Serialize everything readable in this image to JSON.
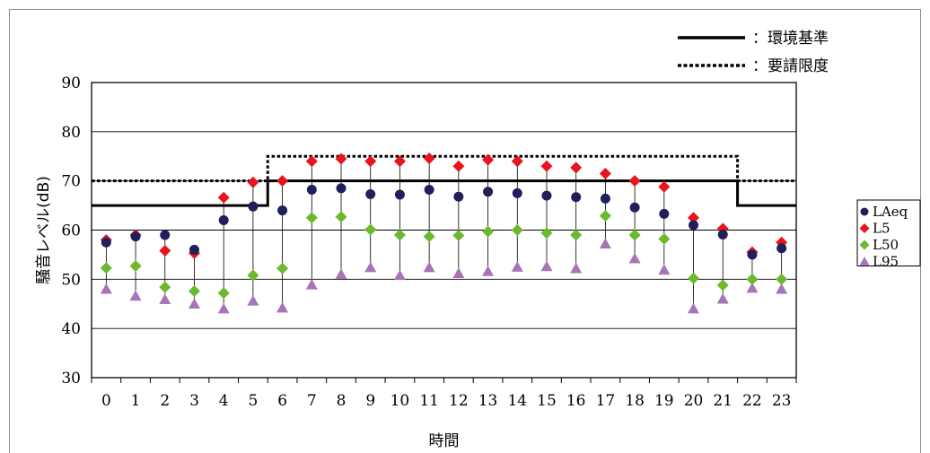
{
  "chart_data": {
    "type": "scatter",
    "xlabel": "時間",
    "ylabel": "騒音レベル(dB)",
    "ylim": [
      30,
      90
    ],
    "yticks": [
      30,
      40,
      50,
      60,
      70,
      80,
      90
    ],
    "categories": [
      "0",
      "1",
      "2",
      "3",
      "4",
      "5",
      "6",
      "7",
      "8",
      "9",
      "10",
      "11",
      "12",
      "13",
      "14",
      "15",
      "16",
      "17",
      "18",
      "19",
      "20",
      "21",
      "22",
      "23"
    ],
    "grid": "horizontal",
    "legend_position": "right",
    "series": [
      {
        "name": "LAeq",
        "marker": "circle",
        "color": "#1f1f5c",
        "values": [
          57.5,
          58.7,
          59.0,
          56.0,
          62.0,
          64.8,
          64.0,
          68.2,
          68.5,
          67.3,
          67.2,
          68.2,
          66.8,
          67.8,
          67.5,
          67.0,
          66.7,
          66.4,
          64.6,
          63.3,
          61.0,
          59.1,
          55.0,
          56.3
        ]
      },
      {
        "name": "L5",
        "marker": "diamond",
        "color": "#e8141e",
        "values": [
          58.0,
          59.0,
          55.8,
          55.3,
          66.6,
          69.7,
          70.0,
          74.0,
          74.5,
          74.0,
          74.0,
          74.6,
          73.0,
          74.3,
          74.0,
          73.0,
          72.7,
          71.5,
          70.0,
          68.8,
          62.5,
          60.3,
          55.5,
          57.5
        ]
      },
      {
        "name": "L50",
        "marker": "diamond",
        "color": "#6ab92f",
        "values": [
          52.3,
          52.7,
          48.4,
          47.6,
          47.2,
          50.8,
          52.2,
          62.5,
          62.7,
          60.1,
          59.0,
          58.7,
          58.9,
          59.7,
          60.0,
          59.4,
          59.0,
          62.9,
          59.0,
          58.2,
          50.2,
          48.8,
          50.0,
          50.0
        ]
      },
      {
        "name": "L95",
        "marker": "triangle",
        "color": "#a874b8",
        "values": [
          48.0,
          46.6,
          45.9,
          45.0,
          44.0,
          45.6,
          44.2,
          48.9,
          51.0,
          52.4,
          50.8,
          52.4,
          51.2,
          51.6,
          52.5,
          52.6,
          52.2,
          57.2,
          54.2,
          51.9,
          44.0,
          46.0,
          48.2,
          48.0
        ]
      }
    ],
    "reference_lines": [
      {
        "name": "環境基準",
        "style": "solid",
        "segments": [
          {
            "from": -0.5,
            "to": 5.5,
            "y": 65
          },
          {
            "from": 5.5,
            "to": 21.5,
            "y": 70
          },
          {
            "from": 21.5,
            "to": 23.5,
            "y": 65
          }
        ]
      },
      {
        "name": "要請限度",
        "style": "dotted",
        "segments": [
          {
            "from": -0.5,
            "to": 5.5,
            "y": 70
          },
          {
            "from": 5.5,
            "to": 21.5,
            "y": 75
          },
          {
            "from": 21.5,
            "to": 23.5,
            "y": 70
          }
        ]
      }
    ],
    "top_legend": [
      {
        "label": "：環境基準",
        "style": "solid"
      },
      {
        "label": "：要請限度",
        "style": "dotted"
      }
    ]
  }
}
